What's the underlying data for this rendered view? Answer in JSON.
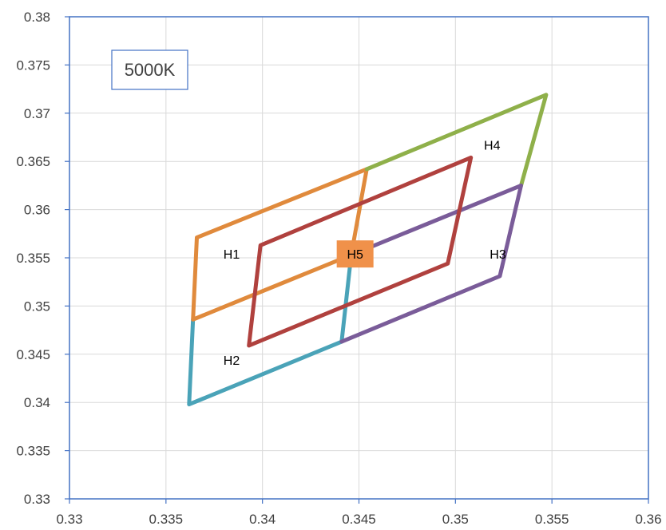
{
  "chart_data": {
    "type": "line",
    "title": "5000K",
    "xlabel": "",
    "ylabel": "",
    "xlim": [
      0.33,
      0.36
    ],
    "ylim": [
      0.33,
      0.38
    ],
    "x_ticks": [
      "0.33",
      "0.335",
      "0.34",
      "0.345",
      "0.35",
      "0.355",
      "0.36"
    ],
    "y_ticks": [
      "0.33",
      "0.335",
      "0.34",
      "0.345",
      "0.35",
      "0.355",
      "0.36",
      "0.365",
      "0.37",
      "0.375",
      "0.38"
    ],
    "x_tick_values": [
      0.33,
      0.335,
      0.34,
      0.345,
      0.35,
      0.355,
      0.36
    ],
    "y_tick_values": [
      0.33,
      0.335,
      0.34,
      0.345,
      0.35,
      0.355,
      0.36,
      0.365,
      0.37,
      0.375,
      0.38
    ],
    "grid": true,
    "legend": "none",
    "series": [
      {
        "color": "#4aa3b8",
        "points": [
          [
            0.3364,
            0.3486
          ],
          [
            0.3362,
            0.3398
          ],
          [
            0.3441,
            0.3463
          ],
          [
            0.3446,
            0.3553
          ]
        ]
      },
      {
        "color": "#e08a3c",
        "points": [
          [
            0.3364,
            0.3486
          ],
          [
            0.3366,
            0.3571
          ],
          [
            0.3454,
            0.3642
          ],
          [
            0.3446,
            0.3553
          ],
          [
            0.3364,
            0.3486
          ]
        ]
      },
      {
        "color": "#8fb04a",
        "points": [
          [
            0.3454,
            0.3642
          ],
          [
            0.3547,
            0.3719
          ],
          [
            0.3534,
            0.3625
          ]
        ]
      },
      {
        "color": "#7a5c99",
        "points": [
          [
            0.3446,
            0.3553
          ],
          [
            0.3534,
            0.3625
          ],
          [
            0.3523,
            0.3531
          ],
          [
            0.3441,
            0.3463
          ]
        ]
      },
      {
        "color": "#b0413e",
        "points": [
          [
            0.3399,
            0.3563
          ],
          [
            0.3508,
            0.3654
          ],
          [
            0.3496,
            0.3544
          ],
          [
            0.3393,
            0.3459
          ],
          [
            0.3399,
            0.3563
          ]
        ]
      }
    ],
    "annotations": [
      {
        "text": "H1",
        "x": 0.3384,
        "y": 0.3554
      },
      {
        "text": "H2",
        "x": 0.3384,
        "y": 0.3444
      },
      {
        "text": "H3",
        "x": 0.3522,
        "y": 0.3554
      },
      {
        "text": "H4",
        "x": 0.3519,
        "y": 0.3667
      },
      {
        "text": "H5",
        "x": 0.3448,
        "y": 0.3554,
        "background": "#f0914a"
      }
    ]
  }
}
